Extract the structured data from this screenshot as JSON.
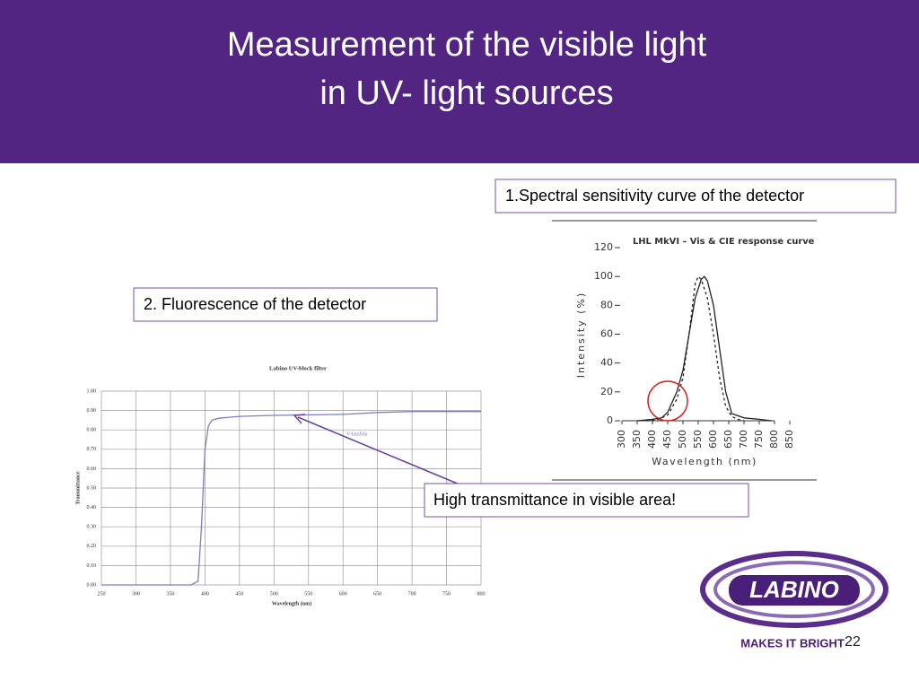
{
  "slide": {
    "title_lines": [
      "Measurement  of the visible light",
      "in UV- light sources"
    ],
    "boxes": [
      "1.Spectral sensitivity curve of the detector",
      "2. Fluorescence of the detector",
      "High transmittance in visible area!"
    ],
    "page_number": "22",
    "logo": {
      "name": "LABINO",
      "tagline": "MAKES IT BRIGHT"
    }
  },
  "chart_data": [
    {
      "type": "line",
      "title": "LHL MkVI – Vis & CIE response curve",
      "x_label": "Wavelength (nm)",
      "y_label": "Intensity (%)",
      "xlim": [
        300,
        850
      ],
      "xticks": [
        300,
        350,
        400,
        450,
        500,
        550,
        600,
        650,
        700,
        750,
        800,
        850
      ],
      "ylim": [
        0,
        120
      ],
      "yticks": [
        0,
        20,
        40,
        60,
        80,
        100,
        120
      ],
      "grid": false,
      "series": [
        {
          "color": "#222222",
          "style": "solid",
          "x": [
            350,
            400,
            430,
            450,
            480,
            500,
            520,
            540,
            560,
            570,
            580,
            600,
            620,
            640,
            660,
            700,
            750,
            790
          ],
          "values": [
            0,
            1,
            2,
            6,
            20,
            35,
            60,
            85,
            98,
            100,
            97,
            80,
            50,
            20,
            5,
            2,
            1,
            0
          ]
        },
        {
          "color": "#222222",
          "style": "dashed",
          "x": [
            380,
            400,
            420,
            450,
            480,
            500,
            520,
            540,
            550,
            560,
            580,
            600,
            620,
            640,
            660,
            680,
            700
          ],
          "values": [
            0,
            0.5,
            1,
            4,
            15,
            30,
            60,
            95,
            100,
            98,
            85,
            60,
            30,
            10,
            3,
            1,
            0
          ]
        }
      ]
    },
    {
      "type": "line",
      "title": "Labino UV-block filter",
      "x_label": "Wavelength (nm)",
      "y_label": "Transmittance",
      "xlim": [
        250,
        800
      ],
      "xticks": [
        250,
        300,
        350,
        400,
        450,
        500,
        550,
        600,
        650,
        700,
        750,
        800
      ],
      "ylim": [
        0,
        1
      ],
      "yticks": [
        {
          "value": 0,
          "label": "0.00"
        },
        {
          "value": 0.1,
          "label": "0.10"
        },
        {
          "value": 0.2,
          "label": "0.20"
        },
        {
          "value": 0.3,
          "label": "0.30"
        },
        {
          "value": 0.4,
          "label": "0.40"
        },
        {
          "value": 0.5,
          "label": "0.50"
        },
        {
          "value": 0.6,
          "label": "0.60"
        },
        {
          "value": 0.7,
          "label": "0.70"
        },
        {
          "value": 0.8,
          "label": "0.80"
        },
        {
          "value": 0.9,
          "label": "0.90"
        },
        {
          "value": 1,
          "label": "1.00"
        }
      ],
      "grid": true,
      "series": [
        {
          "name": "V-lambda",
          "color": "#7b7fc0",
          "style": "solid",
          "x": [
            250,
            380,
            390,
            395,
            400,
            405,
            410,
            420,
            450,
            500,
            600,
            650,
            700,
            800
          ],
          "values": [
            0,
            0,
            0.02,
            0.3,
            0.7,
            0.82,
            0.85,
            0.86,
            0.87,
            0.875,
            0.88,
            0.89,
            0.895,
            0.895
          ]
        }
      ]
    }
  ]
}
